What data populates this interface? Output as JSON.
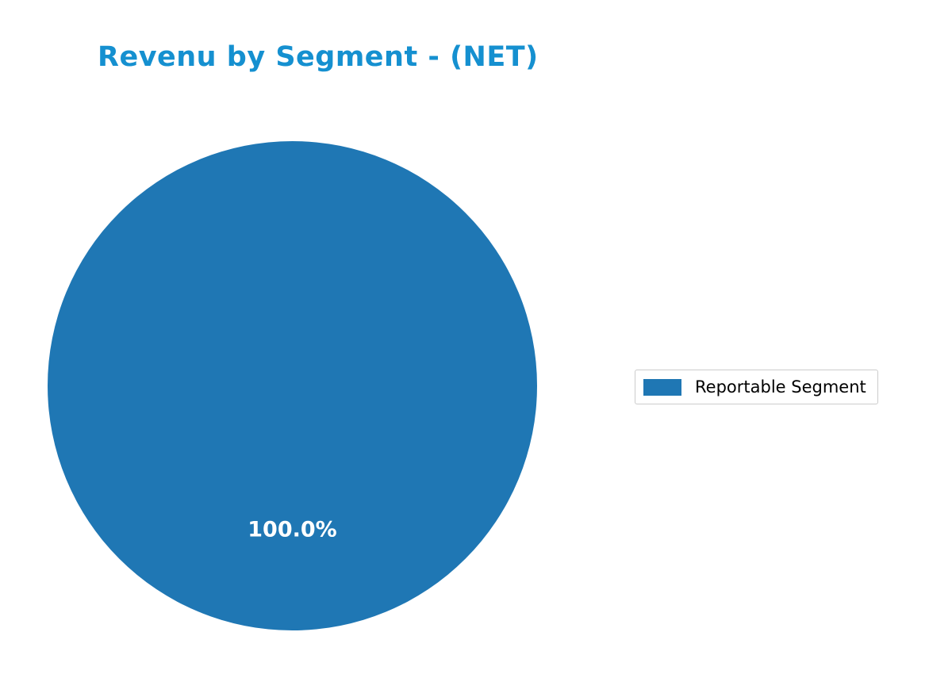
{
  "chart_data": {
    "type": "pie",
    "title": "Revenu by Segment - (NET)",
    "title_color": "#1590d0",
    "labels": [
      "Reportable Segment"
    ],
    "values": [
      100.0
    ],
    "value_labels": [
      "100.0%"
    ],
    "colors": [
      "#1f77b4"
    ],
    "pct_label_color": "#ffffff",
    "legend_position": "right",
    "legend_border_color": "#cccccc",
    "background_color": "#ffffff"
  }
}
